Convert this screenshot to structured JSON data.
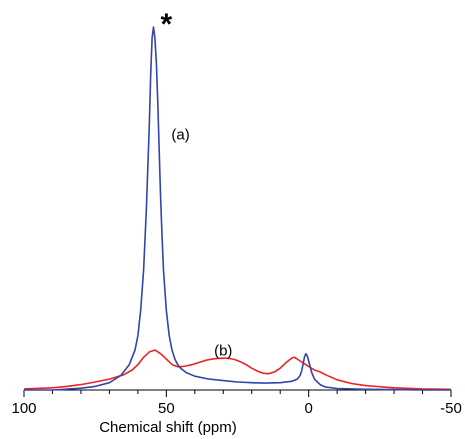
{
  "chart_data": {
    "type": "line",
    "xlabel": "Chemical shift (ppm)",
    "ylabel": "",
    "xlim": [
      100,
      -50
    ],
    "ylim": [
      0,
      1
    ],
    "x_reversed": true,
    "grid": false,
    "x_ticks": [
      100,
      50,
      0,
      -50
    ],
    "x_tick_labels": [
      "100",
      "50",
      "0",
      "-50"
    ],
    "series": [
      {
        "color": "#3344aa",
        "label": "(a)",
        "x": [
          100,
          90,
          80,
          75,
          70,
          66,
          63,
          61,
          60,
          59,
          58,
          57,
          56,
          55.5,
          55,
          54.5,
          54,
          53.5,
          53,
          52.5,
          52,
          51.5,
          51,
          50,
          49,
          48,
          47,
          46,
          45,
          43,
          40,
          35,
          30,
          25,
          20,
          15,
          10,
          6,
          4,
          3,
          2.5,
          2,
          1.5,
          1,
          0.5,
          0,
          -1,
          -2,
          -4,
          -6,
          -10,
          -20,
          -30,
          -40,
          -50
        ],
        "values": [
          0,
          0,
          0.005,
          0.01,
          0.02,
          0.04,
          0.07,
          0.11,
          0.15,
          0.22,
          0.33,
          0.5,
          0.73,
          0.87,
          0.97,
          1.0,
          0.97,
          0.9,
          0.79,
          0.66,
          0.53,
          0.42,
          0.33,
          0.22,
          0.15,
          0.11,
          0.085,
          0.07,
          0.06,
          0.048,
          0.038,
          0.03,
          0.026,
          0.022,
          0.02,
          0.019,
          0.02,
          0.024,
          0.03,
          0.04,
          0.052,
          0.07,
          0.09,
          0.1,
          0.095,
          0.08,
          0.05,
          0.03,
          0.015,
          0.008,
          0.004,
          0.002,
          0.001,
          0,
          0
        ]
      },
      {
        "color": "#ee2222",
        "label": "(b)",
        "x": [
          100,
          90,
          85,
          80,
          75,
          70,
          65,
          62,
          60,
          58,
          56,
          54,
          52,
          50,
          48,
          46,
          44,
          42,
          40,
          38,
          36,
          34,
          32,
          30,
          28,
          26,
          24,
          22,
          20,
          18,
          16,
          14,
          12,
          10,
          8,
          6,
          5,
          4,
          3,
          2,
          0,
          -2,
          -4,
          -6,
          -8,
          -10,
          -15,
          -20,
          -30,
          -40,
          -50
        ],
        "values": [
          0.003,
          0.006,
          0.01,
          0.015,
          0.022,
          0.03,
          0.042,
          0.055,
          0.07,
          0.09,
          0.105,
          0.11,
          0.1,
          0.085,
          0.07,
          0.064,
          0.065,
          0.068,
          0.072,
          0.077,
          0.082,
          0.085,
          0.087,
          0.088,
          0.087,
          0.084,
          0.078,
          0.07,
          0.06,
          0.052,
          0.046,
          0.045,
          0.05,
          0.06,
          0.075,
          0.088,
          0.09,
          0.085,
          0.08,
          0.075,
          0.065,
          0.055,
          0.05,
          0.042,
          0.035,
          0.028,
          0.018,
          0.012,
          0.006,
          0.003,
          0.002
        ]
      }
    ],
    "annotations": [
      {
        "text": "*",
        "x": 50,
        "y": 1.03
      },
      {
        "text": "(a)",
        "x": 45,
        "y": 0.69
      },
      {
        "text": "(b)",
        "x": 30,
        "y": 0.095
      }
    ]
  }
}
